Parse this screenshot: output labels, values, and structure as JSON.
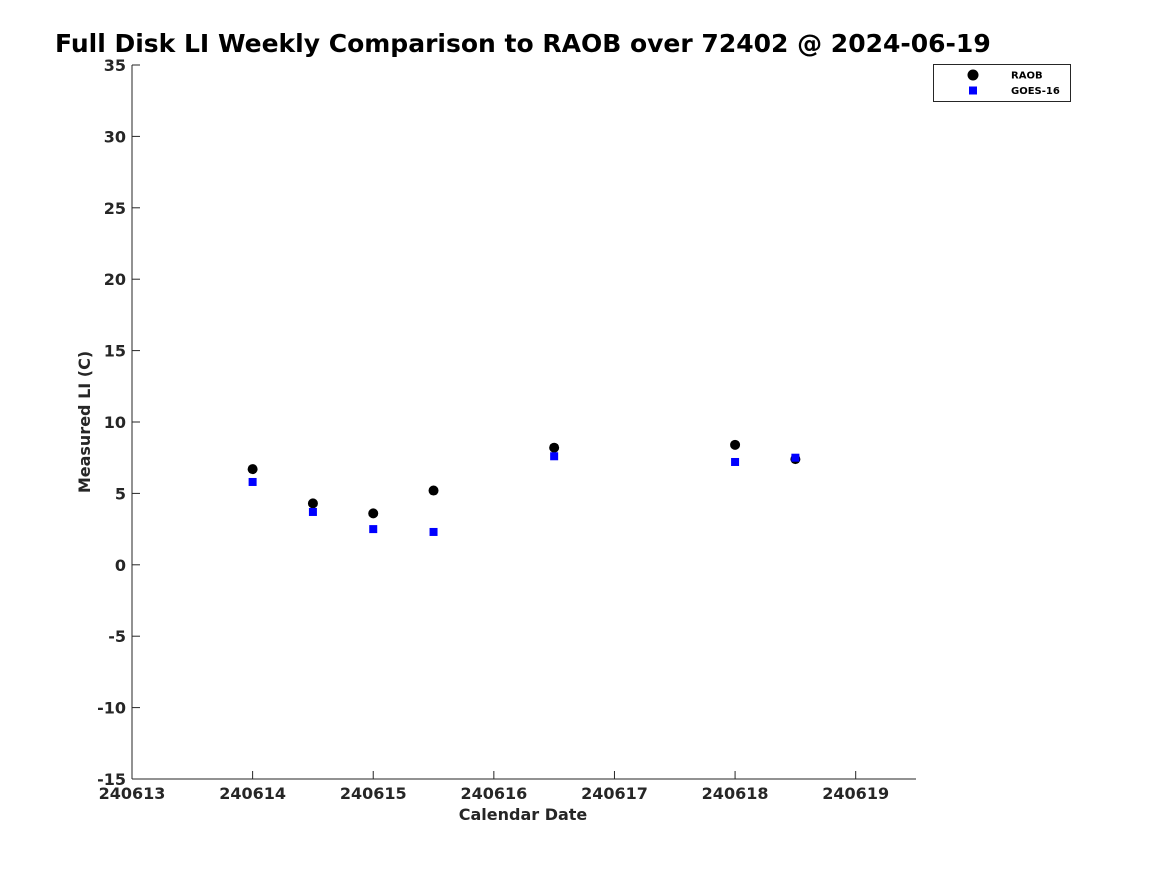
{
  "chart_data": {
    "type": "scatter",
    "title": "Full Disk LI Weekly Comparison to RAOB over 72402 @ 2024-06-19",
    "xlabel": "Calendar Date",
    "ylabel": "Measured LI (C)",
    "xlim": [
      240613,
      240619.5
    ],
    "ylim": [
      -15,
      35
    ],
    "xticks": [
      240613,
      240614,
      240615,
      240616,
      240617,
      240618,
      240619
    ],
    "xtick_labels": [
      "240613",
      "240614",
      "240615",
      "240616",
      "240617",
      "240618",
      "240619"
    ],
    "yticks": [
      35,
      30,
      25,
      20,
      15,
      10,
      5,
      0,
      -5,
      -10,
      -15
    ],
    "ytick_labels": [
      "35",
      "30",
      "25",
      "20",
      "15",
      "10",
      "5",
      "0",
      "-5",
      "-10",
      "-15"
    ],
    "grid": false,
    "legend_position": "top-right",
    "series": [
      {
        "name": "RAOB",
        "marker": "circle",
        "color": "#000000",
        "x": [
          240614,
          240614.5,
          240615,
          240615.5,
          240616.5,
          240618,
          240618.5
        ],
        "y": [
          6.7,
          4.3,
          3.6,
          5.2,
          8.2,
          8.4,
          7.4
        ]
      },
      {
        "name": "GOES-16",
        "marker": "square",
        "color": "#0000ff",
        "x": [
          240614,
          240614.5,
          240615,
          240615.5,
          240616.5,
          240618,
          240618.5
        ],
        "y": [
          5.8,
          3.7,
          2.5,
          2.3,
          7.6,
          7.2,
          7.5
        ]
      }
    ]
  }
}
